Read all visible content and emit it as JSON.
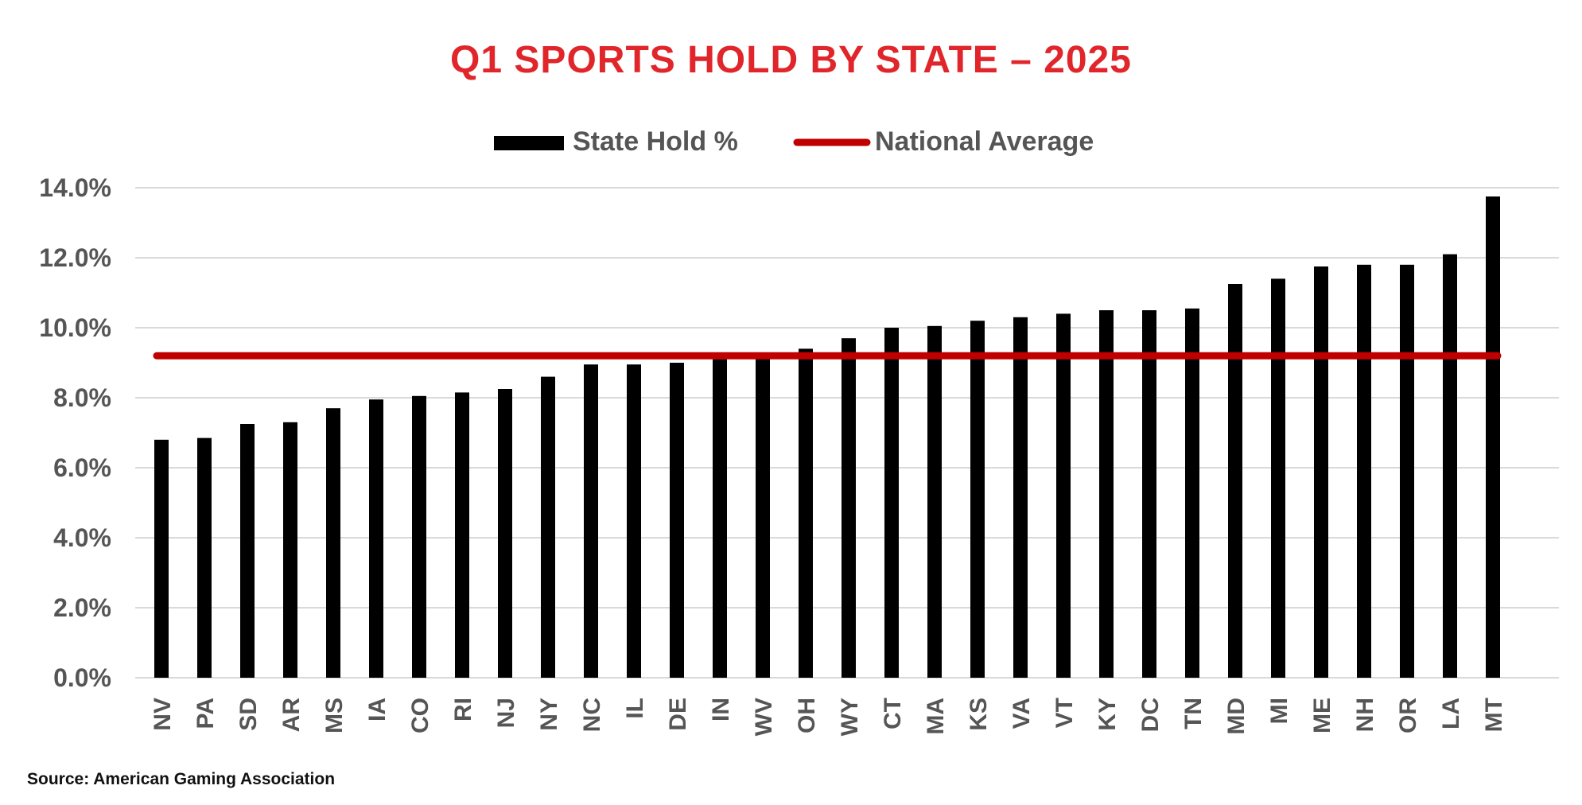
{
  "title": "Q1 SPORTS HOLD BY STATE – 2025",
  "source": "Source: American Gaming Association",
  "colors": {
    "bar": "#000000",
    "average_line": "#c00000",
    "title": "#e0262b",
    "grid": "#d9d9d9",
    "text": "#555555"
  },
  "legend": [
    {
      "label": "State Hold %",
      "symbol": "bar-swatch"
    },
    {
      "label": "National Average",
      "symbol": "line-swatch"
    }
  ],
  "chart_data": {
    "type": "bar",
    "categories": [
      "NV",
      "PA",
      "SD",
      "AR",
      "MS",
      "IA",
      "CO",
      "RI",
      "NJ",
      "NY",
      "NC",
      "IL",
      "DE",
      "IN",
      "WV",
      "OH",
      "WY",
      "CT",
      "MA",
      "KS",
      "VA",
      "VT",
      "KY",
      "DC",
      "TN",
      "MD",
      "MI",
      "ME",
      "NH",
      "OR",
      "LA",
      "MT"
    ],
    "series": [
      {
        "name": "State Hold %",
        "type": "bar",
        "values": [
          6.8,
          6.85,
          7.25,
          7.3,
          7.7,
          7.95,
          8.05,
          8.15,
          8.25,
          8.6,
          8.95,
          8.95,
          9.0,
          9.1,
          9.2,
          9.4,
          9.7,
          10.0,
          10.05,
          10.2,
          10.3,
          10.4,
          10.5,
          10.5,
          10.55,
          11.25,
          11.4,
          11.75,
          11.8,
          11.8,
          12.1,
          13.75
        ]
      },
      {
        "name": "National Average",
        "type": "line",
        "value": 9.2
      }
    ],
    "ylim": [
      0,
      14
    ],
    "yticks": [
      "0.0%",
      "2.0%",
      "4.0%",
      "6.0%",
      "8.0%",
      "10.0%",
      "12.0%",
      "14.0%"
    ],
    "ytick_values": [
      0,
      2,
      4,
      6,
      8,
      10,
      12,
      14
    ],
    "grid": true,
    "legend_position": "top-center",
    "xlabel": "",
    "ylabel": ""
  }
}
